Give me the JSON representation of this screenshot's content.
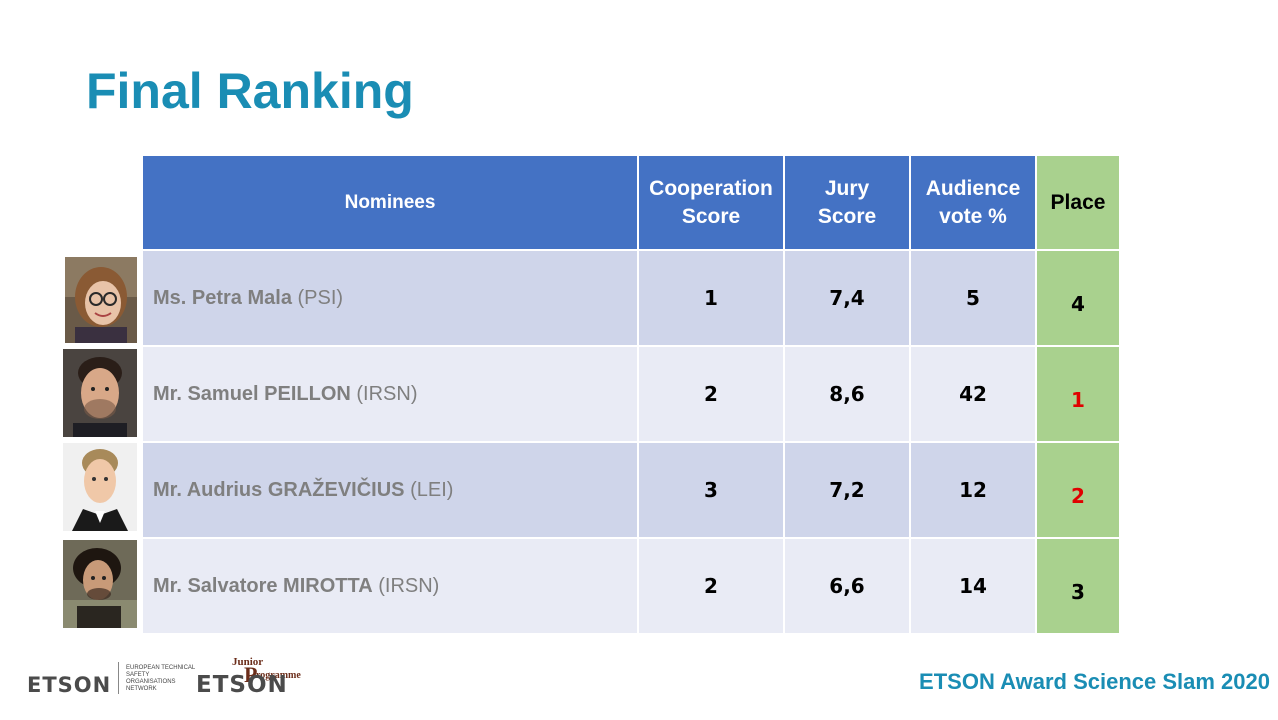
{
  "slide": {
    "title": "Final Ranking",
    "footer_title": "ETSON Award Science Slam 2020"
  },
  "table": {
    "headers": {
      "nominees": "Nominees",
      "cooperation": [
        "Cooperation",
        "Score"
      ],
      "jury": [
        "Jury",
        "Score"
      ],
      "audience": [
        "Audience",
        "vote %"
      ],
      "place": "Place"
    },
    "rows": [
      {
        "name": "Ms. Petra Mala",
        "org": "(PSI)",
        "cooperation": "1",
        "jury": "7,4",
        "audience": "5",
        "place": "4",
        "place_color": "#000000"
      },
      {
        "name": "Mr. Samuel PEILLON",
        "org": "(IRSN)",
        "cooperation": "2",
        "jury": "8,6",
        "audience": "42",
        "place": "1",
        "place_color": "#e00000"
      },
      {
        "name": "Mr. Audrius GRAŽEVIČIUS",
        "org": "(LEI)",
        "cooperation": "3",
        "jury": "7,2",
        "audience": "12",
        "place": "2",
        "place_color": "#e00000"
      },
      {
        "name": "Mr. Salvatore MIROTTA",
        "org": "(IRSN)",
        "cooperation": "2",
        "jury": "6,6",
        "audience": "14",
        "place": "3",
        "place_color": "#000000"
      }
    ]
  },
  "logos": {
    "etson": "ETSON",
    "etson_sub": "EUROPEAN TECHNICAL SAFETY ORGANISATIONS NETWORK",
    "junior_etson": "ETSON",
    "junior_word": "Junior",
    "junior_staff": "Staff",
    "junior_p": "P",
    "junior_programme": "rogramme"
  },
  "colors": {
    "title": "#1a8db4",
    "header_bg": "#4472c4",
    "place_bg": "#a9d18e",
    "row_odd": "#cfd5ea",
    "row_even": "#e9ebf5",
    "highlight_place": "#e00000"
  }
}
